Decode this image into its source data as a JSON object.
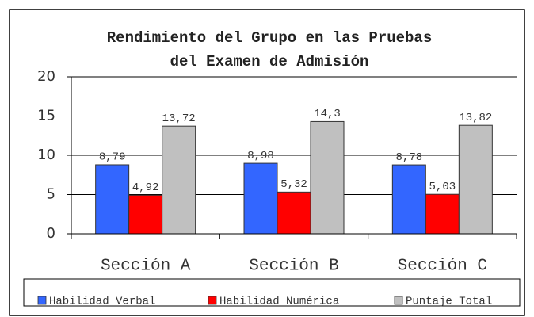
{
  "chart_data": {
    "type": "bar",
    "title": [
      "Rendimiento del Grupo en las Pruebas",
      "del Examen de Admisión"
    ],
    "categories": [
      "Sección A",
      "Sección B",
      "Sección C"
    ],
    "series": [
      {
        "name": "Habilidad Verbal",
        "color": "#3366ff",
        "values": [
          8.79,
          8.98,
          8.78
        ],
        "value_labels": [
          "8,79",
          "8,98",
          "8,78"
        ]
      },
      {
        "name": "Habilidad Numérica",
        "color": "#ff0000",
        "values": [
          4.92,
          5.32,
          5.03
        ],
        "value_labels": [
          "4,92",
          "5,32",
          "5,03"
        ]
      },
      {
        "name": "Puntaje Total",
        "color": "#c0c0c0",
        "values": [
          13.72,
          14.3,
          13.82
        ],
        "value_labels": [
          "13,72",
          "14,3",
          "13,82"
        ]
      }
    ],
    "ylim": [
      0,
      20
    ],
    "yticks": [
      0,
      5,
      10,
      15,
      20
    ],
    "grid": true,
    "legend": "bottom"
  }
}
